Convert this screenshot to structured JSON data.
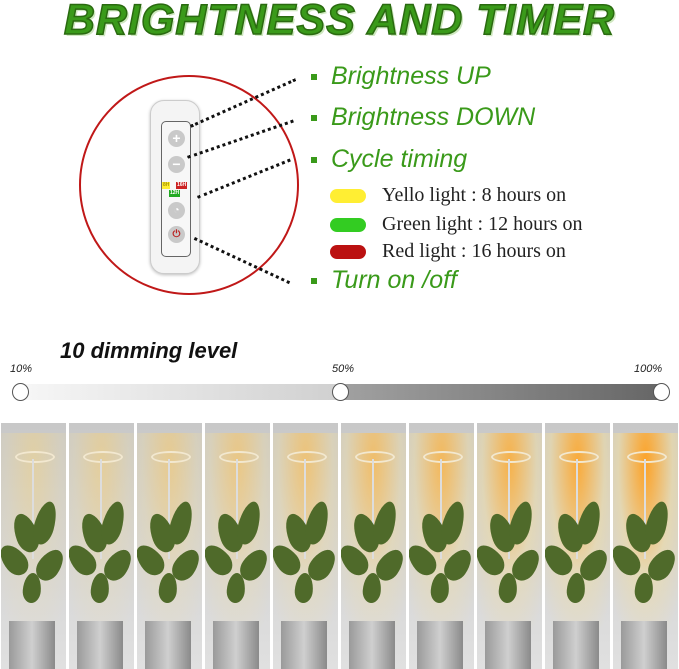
{
  "title": "BRIGHTNESS AND TIMER",
  "controller": {
    "tags": {
      "yellow": "8H",
      "red": "16H",
      "green": "12H"
    },
    "buttons": {
      "plus": "+",
      "minus": "−",
      "timer": "◔",
      "power": "⏻"
    }
  },
  "features": [
    {
      "label": "Brightness UP"
    },
    {
      "label": "Brightness DOWN"
    },
    {
      "label": "Cycle timing"
    },
    {
      "label": "Turn on /off"
    }
  ],
  "timing_legend": [
    {
      "label": "Yello light : 8 hours on",
      "color": "#ffee33"
    },
    {
      "label": "Green light : 12 hours on",
      "color": "#33cc22"
    },
    {
      "label": "Red light : 16 hours on",
      "color": "#bb1111"
    }
  ],
  "dimming": {
    "title": "10 dimming level",
    "marks": [
      "10%",
      "50%",
      "100%"
    ],
    "levels_percent": [
      10,
      20,
      30,
      40,
      50,
      60,
      70,
      80,
      90,
      100
    ]
  },
  "colors": {
    "accent_green": "#3a9a1a",
    "circle_red": "#c01818"
  }
}
